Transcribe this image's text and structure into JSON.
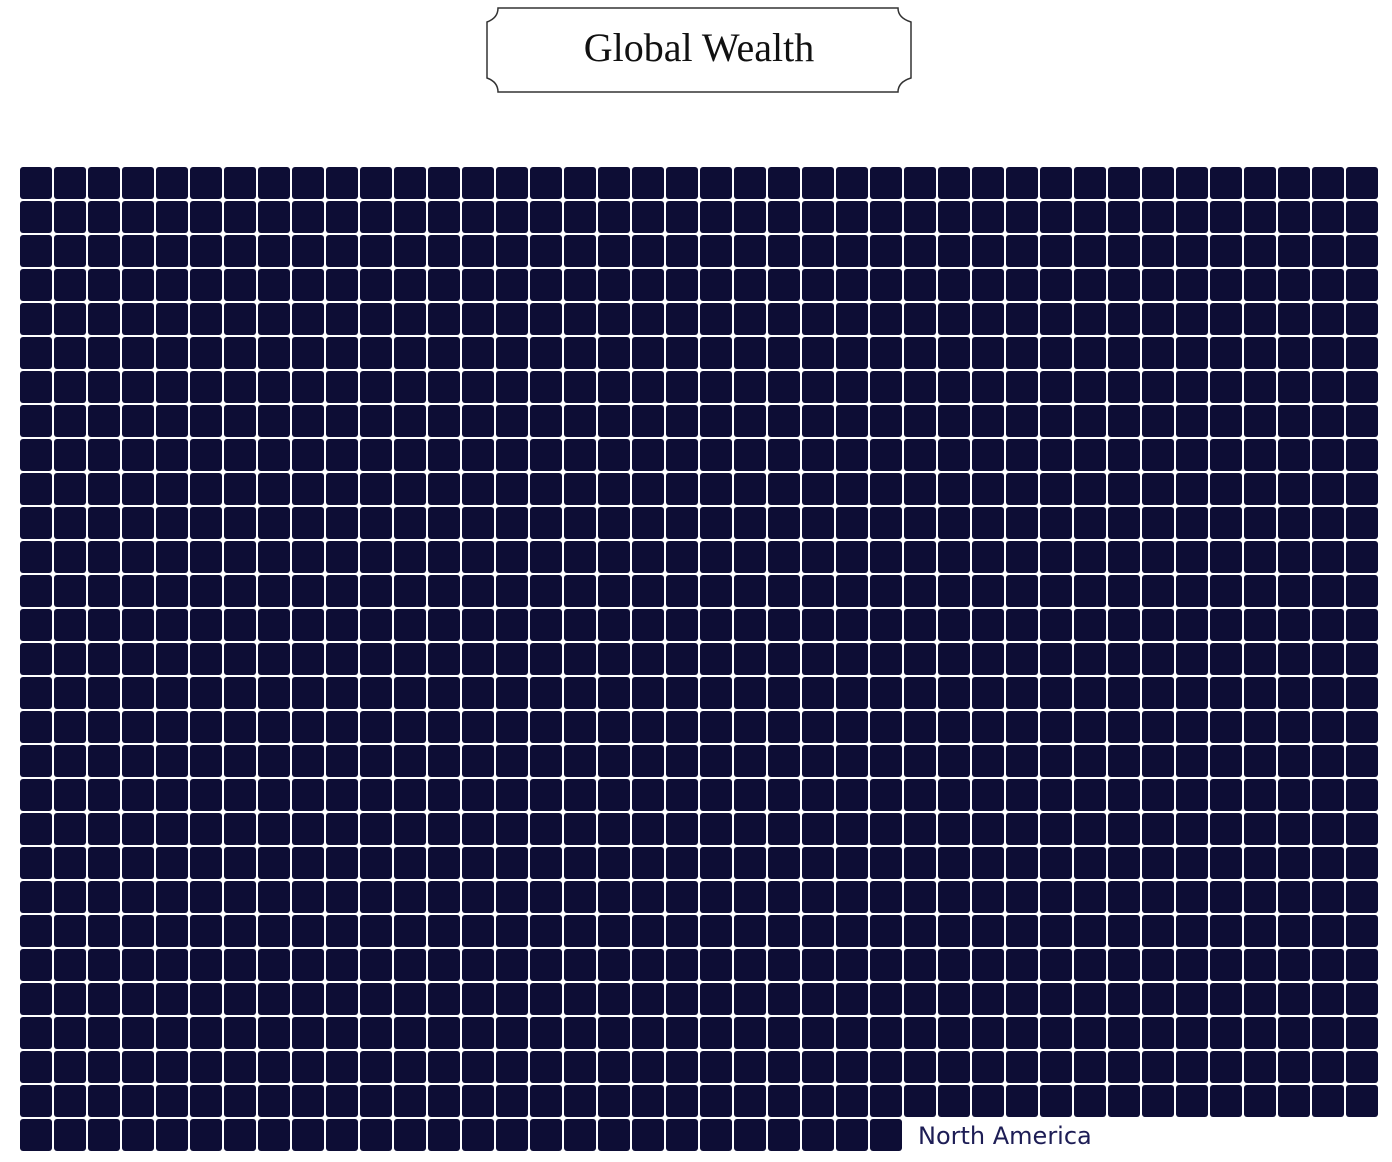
{
  "chart_data": {
    "type": "waffle",
    "title": "Global Wealth",
    "series": [
      {
        "name": "North America",
        "value": 1146,
        "color": "#0d0d35"
      }
    ]
  }
}
